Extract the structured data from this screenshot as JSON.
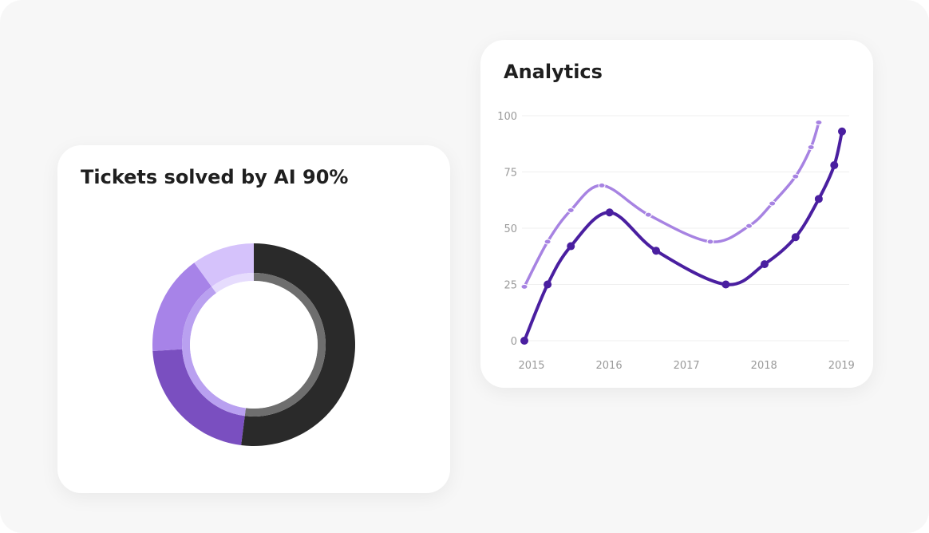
{
  "colors": {
    "background": "#f7f7f7",
    "card": "#ffffff",
    "title": "#1f1f1f",
    "axis_text": "#9a9a9a",
    "gridline": "#efefef"
  },
  "chart_data": [
    {
      "type": "pie",
      "subtype": "donut",
      "title": "Tickets solved by AI 90%",
      "slices": [
        {
          "value": 52,
          "color": "#2a2a2a"
        },
        {
          "value": 22,
          "color": "#7a4fc0"
        },
        {
          "value": 16,
          "color": "#a783e8"
        },
        {
          "value": 10,
          "color": "#d5c2fb"
        }
      ],
      "inner_ring": [
        {
          "value": 52,
          "color": "#6e6e6e"
        },
        {
          "value": 38,
          "color": "#b9a0f0"
        },
        {
          "value": 10,
          "color": "#e6dcfd"
        }
      ]
    },
    {
      "type": "line",
      "title": "Analytics",
      "x_ticks": [
        "2015",
        "2016",
        "2017",
        "2018",
        "2019"
      ],
      "y_ticks": [
        "0",
        "25",
        "50",
        "75",
        "100"
      ],
      "xlim": [
        2015,
        2019.1
      ],
      "ylim": [
        0,
        100
      ],
      "grid": true,
      "series": [
        {
          "color": "#a783e2",
          "points": [
            [
              2015.0,
              24
            ],
            [
              2015.3,
              44
            ],
            [
              2015.6,
              58
            ],
            [
              2016.0,
              69
            ],
            [
              2016.6,
              56
            ],
            [
              2017.4,
              44
            ],
            [
              2017.9,
              51
            ],
            [
              2018.2,
              61
            ],
            [
              2018.5,
              73
            ],
            [
              2018.7,
              86
            ],
            [
              2018.8,
              97
            ]
          ]
        },
        {
          "color": "#4a1fa0",
          "points": [
            [
              2015.0,
              0
            ],
            [
              2015.3,
              25
            ],
            [
              2015.6,
              42
            ],
            [
              2016.1,
              57
            ],
            [
              2016.7,
              40
            ],
            [
              2017.6,
              25
            ],
            [
              2018.1,
              34
            ],
            [
              2018.5,
              46
            ],
            [
              2018.8,
              63
            ],
            [
              2019.0,
              78
            ],
            [
              2019.1,
              93
            ]
          ]
        }
      ]
    }
  ]
}
